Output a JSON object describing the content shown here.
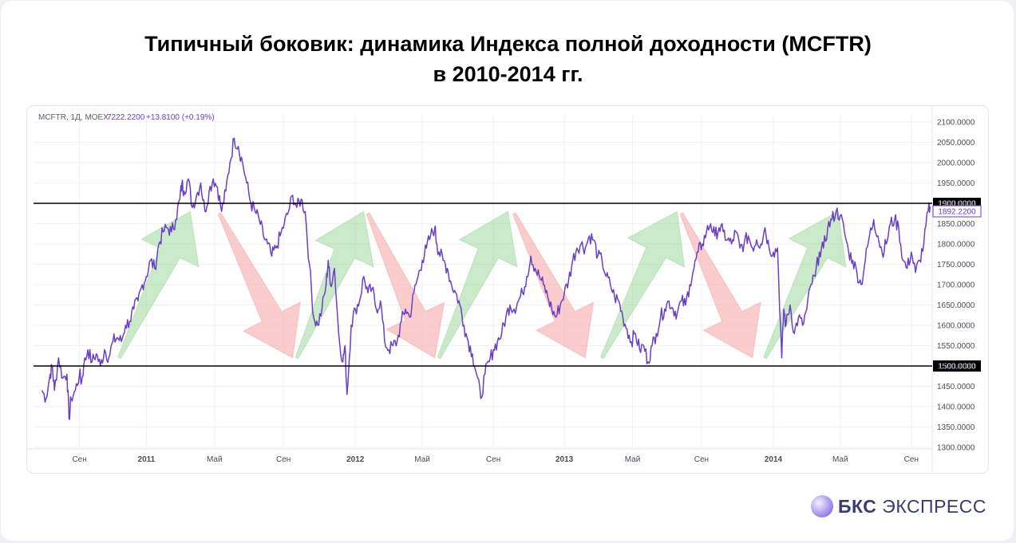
{
  "title": {
    "line1": "Типичный боковик: динамика Индекса полной доходности (MCFTR)",
    "line2": "в 2010-2014 гг."
  },
  "chart_data": {
    "type": "line",
    "ticker_info": {
      "symbol": "MCFTR, 1Д, MOEX",
      "last": "7222.2200",
      "change": "+13.8100 (+0.19%)"
    },
    "y_ticks": [
      "2100.0000",
      "2050.0000",
      "2000.0000",
      "1950.0000",
      "1900.0000",
      "1850.0000",
      "1800.0000",
      "1750.0000",
      "1700.0000",
      "1650.0000",
      "1600.0000",
      "1550.0000",
      "1500.0000",
      "1450.0000",
      "1400.0000",
      "1350.0000",
      "1300.0000"
    ],
    "ylim": [
      1300,
      2100
    ],
    "x_ticks": [
      {
        "label": "Сен",
        "t": 0.09,
        "bold": false
      },
      {
        "label": "2011",
        "t": 0.25,
        "bold": true
      },
      {
        "label": "Май",
        "t": 0.413,
        "bold": false
      },
      {
        "label": "Сен",
        "t": 0.578,
        "bold": false
      },
      {
        "label": "2012",
        "t": 0.75,
        "bold": true
      },
      {
        "label": "Май",
        "t": 0.91,
        "bold": false
      },
      {
        "label": "Сен",
        "t": 1.08,
        "bold": false
      },
      {
        "label": "2013",
        "t": 1.25,
        "bold": true
      },
      {
        "label": "Май",
        "t": 1.413,
        "bold": false
      },
      {
        "label": "Сен",
        "t": 1.578,
        "bold": false
      },
      {
        "label": "2014",
        "t": 1.75,
        "bold": true
      },
      {
        "label": "Май",
        "t": 1.91,
        "bold": false
      },
      {
        "label": "Сен",
        "t": 2.08,
        "bold": false
      }
    ],
    "xlim_note": "t = 0 is 2010-07-01, in years",
    "hlines": [
      {
        "value": 1900,
        "label": "1900.0000"
      },
      {
        "value": 1500,
        "label": "1500.0000"
      }
    ],
    "last_value_label": "1892.2200",
    "series": [
      {
        "color": "#6a3fc6",
        "points": [
          [
            0.0,
            1440
          ],
          [
            0.01,
            1420
          ],
          [
            0.02,
            1480
          ],
          [
            0.025,
            1500
          ],
          [
            0.03,
            1440
          ],
          [
            0.04,
            1520
          ],
          [
            0.05,
            1470
          ],
          [
            0.06,
            1480
          ],
          [
            0.065,
            1370
          ],
          [
            0.07,
            1420
          ],
          [
            0.08,
            1440
          ],
          [
            0.09,
            1480
          ],
          [
            0.095,
            1460
          ],
          [
            0.1,
            1500
          ],
          [
            0.11,
            1540
          ],
          [
            0.12,
            1510
          ],
          [
            0.13,
            1530
          ],
          [
            0.14,
            1500
          ],
          [
            0.15,
            1540
          ],
          [
            0.16,
            1520
          ],
          [
            0.17,
            1560
          ],
          [
            0.18,
            1570
          ],
          [
            0.19,
            1560
          ],
          [
            0.2,
            1600
          ],
          [
            0.21,
            1610
          ],
          [
            0.22,
            1640
          ],
          [
            0.23,
            1660
          ],
          [
            0.24,
            1700
          ],
          [
            0.25,
            1720
          ],
          [
            0.26,
            1760
          ],
          [
            0.27,
            1740
          ],
          [
            0.28,
            1800
          ],
          [
            0.29,
            1830
          ],
          [
            0.3,
            1840
          ],
          [
            0.31,
            1830
          ],
          [
            0.32,
            1860
          ],
          [
            0.33,
            1910
          ],
          [
            0.335,
            1950
          ],
          [
            0.34,
            1930
          ],
          [
            0.35,
            1960
          ],
          [
            0.36,
            1890
          ],
          [
            0.37,
            1920
          ],
          [
            0.38,
            1950
          ],
          [
            0.39,
            1880
          ],
          [
            0.4,
            1930
          ],
          [
            0.41,
            1960
          ],
          [
            0.42,
            1940
          ],
          [
            0.43,
            1880
          ],
          [
            0.44,
            1930
          ],
          [
            0.45,
            2000
          ],
          [
            0.46,
            2060
          ],
          [
            0.47,
            2040
          ],
          [
            0.48,
            2000
          ],
          [
            0.49,
            1950
          ],
          [
            0.5,
            1900
          ],
          [
            0.51,
            1880
          ],
          [
            0.52,
            1860
          ],
          [
            0.53,
            1820
          ],
          [
            0.54,
            1800
          ],
          [
            0.55,
            1770
          ],
          [
            0.56,
            1790
          ],
          [
            0.57,
            1820
          ],
          [
            0.58,
            1850
          ],
          [
            0.59,
            1880
          ],
          [
            0.6,
            1920
          ],
          [
            0.61,
            1890
          ],
          [
            0.62,
            1910
          ],
          [
            0.63,
            1880
          ],
          [
            0.64,
            1750
          ],
          [
            0.65,
            1620
          ],
          [
            0.66,
            1600
          ],
          [
            0.67,
            1640
          ],
          [
            0.68,
            1700
          ],
          [
            0.685,
            1760
          ],
          [
            0.69,
            1700
          ],
          [
            0.7,
            1740
          ],
          [
            0.71,
            1580
          ],
          [
            0.72,
            1510
          ],
          [
            0.725,
            1550
          ],
          [
            0.73,
            1430
          ],
          [
            0.74,
            1600
          ],
          [
            0.75,
            1640
          ],
          [
            0.76,
            1660
          ],
          [
            0.77,
            1720
          ],
          [
            0.78,
            1680
          ],
          [
            0.79,
            1690
          ],
          [
            0.8,
            1640
          ],
          [
            0.81,
            1660
          ],
          [
            0.82,
            1560
          ],
          [
            0.83,
            1540
          ],
          [
            0.84,
            1550
          ],
          [
            0.85,
            1560
          ],
          [
            0.86,
            1610
          ],
          [
            0.87,
            1640
          ],
          [
            0.88,
            1620
          ],
          [
            0.89,
            1680
          ],
          [
            0.9,
            1720
          ],
          [
            0.91,
            1760
          ],
          [
            0.92,
            1790
          ],
          [
            0.93,
            1820
          ],
          [
            0.94,
            1840
          ],
          [
            0.945,
            1800
          ],
          [
            0.95,
            1780
          ],
          [
            0.96,
            1760
          ],
          [
            0.97,
            1740
          ],
          [
            0.98,
            1700
          ],
          [
            0.99,
            1680
          ],
          [
            1.0,
            1650
          ],
          [
            1.01,
            1600
          ],
          [
            1.02,
            1560
          ],
          [
            1.03,
            1530
          ],
          [
            1.04,
            1480
          ],
          [
            1.05,
            1420
          ],
          [
            1.06,
            1480
          ],
          [
            1.07,
            1510
          ],
          [
            1.08,
            1540
          ],
          [
            1.09,
            1560
          ],
          [
            1.1,
            1580
          ],
          [
            1.11,
            1620
          ],
          [
            1.12,
            1650
          ],
          [
            1.13,
            1640
          ],
          [
            1.14,
            1660
          ],
          [
            1.15,
            1680
          ],
          [
            1.16,
            1720
          ],
          [
            1.17,
            1770
          ],
          [
            1.18,
            1740
          ],
          [
            1.19,
            1720
          ],
          [
            1.2,
            1700
          ],
          [
            1.21,
            1670
          ],
          [
            1.22,
            1640
          ],
          [
            1.23,
            1620
          ],
          [
            1.24,
            1650
          ],
          [
            1.25,
            1680
          ],
          [
            1.26,
            1710
          ],
          [
            1.27,
            1760
          ],
          [
            1.28,
            1790
          ],
          [
            1.29,
            1800
          ],
          [
            1.3,
            1790
          ],
          [
            1.31,
            1820
          ],
          [
            1.32,
            1810
          ],
          [
            1.33,
            1770
          ],
          [
            1.34,
            1760
          ],
          [
            1.35,
            1720
          ],
          [
            1.36,
            1700
          ],
          [
            1.37,
            1670
          ],
          [
            1.38,
            1660
          ],
          [
            1.39,
            1620
          ],
          [
            1.4,
            1590
          ],
          [
            1.41,
            1560
          ],
          [
            1.42,
            1580
          ],
          [
            1.43,
            1540
          ],
          [
            1.44,
            1550
          ],
          [
            1.45,
            1510
          ],
          [
            1.46,
            1550
          ],
          [
            1.47,
            1580
          ],
          [
            1.48,
            1620
          ],
          [
            1.49,
            1640
          ],
          [
            1.5,
            1660
          ],
          [
            1.51,
            1640
          ],
          [
            1.52,
            1630
          ],
          [
            1.53,
            1660
          ],
          [
            1.54,
            1650
          ],
          [
            1.55,
            1700
          ],
          [
            1.56,
            1740
          ],
          [
            1.57,
            1780
          ],
          [
            1.58,
            1800
          ],
          [
            1.59,
            1830
          ],
          [
            1.6,
            1850
          ],
          [
            1.61,
            1820
          ],
          [
            1.62,
            1840
          ],
          [
            1.63,
            1830
          ],
          [
            1.64,
            1810
          ],
          [
            1.65,
            1800
          ],
          [
            1.66,
            1830
          ],
          [
            1.67,
            1790
          ],
          [
            1.68,
            1800
          ],
          [
            1.69,
            1820
          ],
          [
            1.7,
            1790
          ],
          [
            1.71,
            1810
          ],
          [
            1.72,
            1800
          ],
          [
            1.73,
            1840
          ],
          [
            1.74,
            1790
          ],
          [
            1.75,
            1780
          ],
          [
            1.76,
            1790
          ],
          [
            1.77,
            1520
          ],
          [
            1.775,
            1640
          ],
          [
            1.78,
            1600
          ],
          [
            1.79,
            1650
          ],
          [
            1.8,
            1580
          ],
          [
            1.81,
            1620
          ],
          [
            1.82,
            1600
          ],
          [
            1.83,
            1640
          ],
          [
            1.84,
            1700
          ],
          [
            1.85,
            1720
          ],
          [
            1.86,
            1780
          ],
          [
            1.87,
            1790
          ],
          [
            1.88,
            1840
          ],
          [
            1.89,
            1860
          ],
          [
            1.9,
            1880
          ],
          [
            1.91,
            1870
          ],
          [
            1.92,
            1830
          ],
          [
            1.93,
            1780
          ],
          [
            1.94,
            1760
          ],
          [
            1.95,
            1730
          ],
          [
            1.96,
            1700
          ],
          [
            1.97,
            1760
          ],
          [
            1.98,
            1820
          ],
          [
            1.99,
            1860
          ],
          [
            2.0,
            1820
          ],
          [
            2.01,
            1780
          ],
          [
            2.02,
            1800
          ],
          [
            2.03,
            1850
          ],
          [
            2.04,
            1860
          ],
          [
            2.05,
            1840
          ],
          [
            2.06,
            1760
          ],
          [
            2.07,
            1740
          ],
          [
            2.08,
            1780
          ],
          [
            2.09,
            1730
          ],
          [
            2.1,
            1760
          ],
          [
            2.11,
            1800
          ],
          [
            2.12,
            1880
          ],
          [
            2.125,
            1892
          ]
        ]
      }
    ],
    "arrows": [
      {
        "dir": "up",
        "from": [
          0.185,
          1520
        ],
        "to": [
          0.355,
          1880
        ]
      },
      {
        "dir": "down",
        "from": [
          0.425,
          1875
        ],
        "to": [
          0.6,
          1520
        ]
      },
      {
        "dir": "up",
        "from": [
          0.61,
          1520
        ],
        "to": [
          0.77,
          1880
        ]
      },
      {
        "dir": "down",
        "from": [
          0.78,
          1875
        ],
        "to": [
          0.94,
          1520
        ]
      },
      {
        "dir": "up",
        "from": [
          0.95,
          1520
        ],
        "to": [
          1.115,
          1880
        ]
      },
      {
        "dir": "down",
        "from": [
          1.13,
          1875
        ],
        "to": [
          1.3,
          1520
        ]
      },
      {
        "dir": "up",
        "from": [
          1.34,
          1520
        ],
        "to": [
          1.52,
          1880
        ]
      },
      {
        "dir": "down",
        "from": [
          1.53,
          1875
        ],
        "to": [
          1.7,
          1520
        ]
      },
      {
        "dir": "up",
        "from": [
          1.73,
          1520
        ],
        "to": [
          1.905,
          1880
        ]
      }
    ]
  },
  "brand": {
    "bold": "БКС",
    "light": "ЭКСПРЕСС"
  },
  "colors": {
    "line": "#6a3fc6",
    "up_arrow": "#9fd99c",
    "down_arrow": "#f5a3a3",
    "hline": "#000000",
    "last_price_bg": "#ffffff"
  }
}
